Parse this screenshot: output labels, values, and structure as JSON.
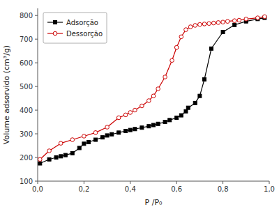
{
  "chart_data": {
    "type": "line",
    "xlabel": "P /P₀",
    "ylabel": "Volume adsorvido (cm³/g)",
    "xlim": [
      0.0,
      1.0
    ],
    "ylim": [
      100,
      830
    ],
    "xticks": [
      {
        "value": 0.0,
        "label": "0,0"
      },
      {
        "value": 0.2,
        "label": "0,2"
      },
      {
        "value": 0.4,
        "label": "0,4"
      },
      {
        "value": 0.6,
        "label": "0,6"
      },
      {
        "value": 0.8,
        "label": "0,8"
      },
      {
        "value": 1.0,
        "label": "1,0"
      }
    ],
    "yticks": [
      100,
      200,
      300,
      400,
      500,
      600,
      700,
      800
    ],
    "grid": false,
    "legend": "upper left",
    "series": [
      {
        "name": "Adsorção",
        "color": "#000000",
        "marker": "square",
        "x": [
          0.01,
          0.05,
          0.08,
          0.1,
          0.12,
          0.15,
          0.18,
          0.2,
          0.22,
          0.25,
          0.28,
          0.3,
          0.32,
          0.35,
          0.38,
          0.4,
          0.42,
          0.45,
          0.48,
          0.5,
          0.52,
          0.55,
          0.57,
          0.6,
          0.62,
          0.64,
          0.65,
          0.68,
          0.7,
          0.72,
          0.75,
          0.8,
          0.85,
          0.9,
          0.95,
          0.98
        ],
        "values": [
          175,
          192,
          200,
          205,
          210,
          218,
          240,
          258,
          265,
          275,
          285,
          293,
          298,
          305,
          312,
          316,
          320,
          326,
          332,
          337,
          342,
          350,
          358,
          368,
          378,
          395,
          410,
          430,
          460,
          530,
          660,
          730,
          760,
          775,
          785,
          790
        ]
      },
      {
        "name": "Dessorção",
        "color": "#cc0000",
        "marker": "circle-open",
        "x": [
          0.98,
          0.95,
          0.9,
          0.87,
          0.85,
          0.82,
          0.8,
          0.78,
          0.76,
          0.74,
          0.72,
          0.7,
          0.68,
          0.66,
          0.64,
          0.62,
          0.6,
          0.58,
          0.55,
          0.52,
          0.5,
          0.48,
          0.45,
          0.42,
          0.4,
          0.38,
          0.35,
          0.3,
          0.25,
          0.2,
          0.15,
          0.1,
          0.05,
          0.01
        ],
        "values": [
          795,
          790,
          785,
          780,
          778,
          775,
          772,
          770,
          768,
          766,
          764,
          762,
          758,
          752,
          740,
          710,
          665,
          610,
          540,
          490,
          460,
          440,
          418,
          400,
          390,
          380,
          368,
          328,
          305,
          290,
          275,
          260,
          228,
          192
        ]
      }
    ]
  }
}
